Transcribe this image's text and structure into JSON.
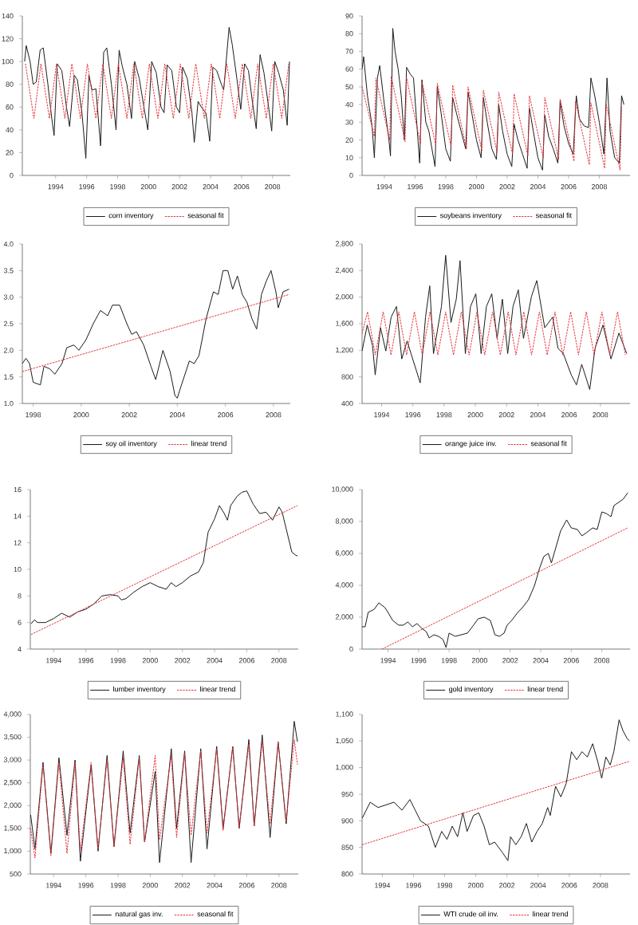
{
  "chart_data": [
    {
      "type": "line",
      "xlim": [
        1991.85,
        2009.15
      ],
      "xticks": [
        1994,
        1996,
        1998,
        2000,
        2002,
        2004,
        2006,
        2008
      ],
      "ylim": [
        0,
        140
      ],
      "yticks": [
        0,
        20,
        40,
        60,
        80,
        100,
        120,
        140
      ],
      "legend": "bottom",
      "series": [
        {
          "name": "corn inventory",
          "color": "#1a1a1a",
          "line_style": "solid",
          "x": [
            1992.0,
            1992.1,
            1992.35,
            1992.55,
            1992.75,
            1993.0,
            1993.2,
            1993.5,
            1993.75,
            1993.9,
            1994.1,
            1994.4,
            1994.7,
            1994.9,
            1995.2,
            1995.4,
            1995.7,
            1995.95,
            1996.15,
            1996.35,
            1996.6,
            1996.9,
            1997.1,
            1997.3,
            1997.6,
            1997.9,
            1998.1,
            1998.3,
            1998.6,
            1998.9,
            1999.1,
            1999.4,
            1999.7,
            1999.95,
            2000.2,
            2000.5,
            2000.8,
            2001.0,
            2001.2,
            2001.5,
            2001.8,
            2002.0,
            2002.2,
            2002.5,
            2002.8,
            2002.95,
            2003.2,
            2003.4,
            2003.7,
            2003.95,
            2004.15,
            2004.4,
            2004.7,
            2004.85,
            2005.2,
            2005.4,
            2005.7,
            2005.95,
            2006.2,
            2006.45,
            2006.7,
            2006.95,
            2007.2,
            2007.45,
            2007.7,
            2007.95,
            2008.15,
            2008.4,
            2008.7,
            2008.95,
            2009.1
          ],
          "values": [
            100,
            114,
            100,
            80,
            82,
            110,
            112,
            80,
            50,
            35,
            98,
            92,
            60,
            43,
            88,
            84,
            55,
            15,
            88,
            75,
            76,
            26,
            108,
            112,
            80,
            40,
            110,
            96,
            80,
            50,
            100,
            85,
            60,
            40,
            100,
            90,
            60,
            55,
            97,
            92,
            60,
            55,
            95,
            85,
            55,
            29,
            65,
            60,
            55,
            30,
            95,
            92,
            80,
            75,
            130,
            115,
            85,
            58,
            98,
            92,
            65,
            41,
            106,
            90,
            65,
            39,
            100,
            90,
            75,
            44,
            100
          ]
        },
        {
          "name": "seasonal fit",
          "color": "#e8303a",
          "line_style": "dashed",
          "x": [
            1992.05,
            1992.6,
            1993.05,
            1993.6,
            1994.05,
            1994.6,
            1995.05,
            1995.6,
            1996.05,
            1996.6,
            1997.05,
            1997.6,
            1998.05,
            1998.6,
            1999.05,
            1999.6,
            2000.05,
            2000.6,
            2001.05,
            2001.6,
            2002.05,
            2002.6,
            2003.05,
            2003.6,
            2004.05,
            2004.6,
            2005.05,
            2005.6,
            2006.05,
            2006.6,
            2007.05,
            2007.6,
            2008.05,
            2008.6,
            2009.05
          ],
          "values": [
            98,
            50,
            98,
            50,
            98,
            50,
            98,
            50,
            98,
            50,
            98,
            50,
            98,
            50,
            98,
            50,
            98,
            50,
            98,
            50,
            98,
            50,
            98,
            50,
            98,
            50,
            98,
            50,
            98,
            50,
            98,
            50,
            98,
            50,
            98
          ]
        }
      ]
    },
    {
      "type": "line",
      "xlim": [
        1992.55,
        2010.0
      ],
      "xticks": [
        1994,
        1996,
        1998,
        2000,
        2002,
        2004,
        2006,
        2008
      ],
      "ylim": [
        0,
        90
      ],
      "yticks": [
        0,
        10,
        20,
        30,
        40,
        50,
        60,
        70,
        80,
        90
      ],
      "legend": "bottom",
      "series": [
        {
          "name": "soybeans inventory",
          "color": "#1a1a1a",
          "line_style": "solid",
          "x": [
            1992.55,
            1992.65,
            1992.9,
            1993.2,
            1993.35,
            1993.55,
            1993.7,
            1994.0,
            1994.3,
            1994.4,
            1994.55,
            1994.7,
            1994.9,
            1995.1,
            1995.3,
            1995.45,
            1995.7,
            1995.9,
            1996.3,
            1996.45,
            1996.7,
            1996.9,
            1997.3,
            1997.45,
            1997.7,
            1998.0,
            1998.3,
            1998.45,
            1998.7,
            1999.0,
            1999.3,
            1999.45,
            1999.7,
            2000.0,
            2000.3,
            2000.45,
            2000.7,
            2001.0,
            2001.3,
            2001.45,
            2001.7,
            2002.0,
            2002.3,
            2002.45,
            2002.7,
            2003.0,
            2003.3,
            2003.45,
            2003.7,
            2004.0,
            2004.3,
            2004.45,
            2004.7,
            2005.0,
            2005.3,
            2005.45,
            2005.7,
            2006.0,
            2006.3,
            2006.5,
            2006.7,
            2007.0,
            2007.3,
            2007.45,
            2007.7,
            2008.0,
            2008.3,
            2008.5,
            2008.7,
            2009.0,
            2009.3,
            2009.45,
            2009.6
          ],
          "values": [
            60,
            67,
            45,
            28,
            10,
            55,
            62,
            40,
            20,
            11,
            83,
            70,
            60,
            45,
            20,
            61,
            57,
            55,
            7,
            54,
            30,
            25,
            5,
            50,
            35,
            15,
            8,
            44,
            35,
            25,
            15,
            47,
            35,
            20,
            10,
            44,
            30,
            15,
            9,
            40,
            25,
            12,
            5,
            29,
            20,
            12,
            4,
            38,
            25,
            10,
            3,
            34,
            22,
            15,
            7,
            42,
            28,
            18,
            12,
            45,
            32,
            28,
            27,
            55,
            45,
            30,
            12,
            55,
            25,
            10,
            7,
            45,
            40
          ]
        },
        {
          "name": "seasonal fit",
          "color": "#e8303a",
          "line_style": "dashed",
          "x": [
            1992.55,
            1993.35,
            1993.45,
            1994.35,
            1994.45,
            1995.35,
            1995.45,
            1996.35,
            1996.45,
            1997.35,
            1997.45,
            1998.35,
            1998.45,
            1999.35,
            1999.45,
            2000.35,
            2000.45,
            2001.35,
            2001.45,
            2002.35,
            2002.45,
            2003.35,
            2003.45,
            2004.35,
            2004.45,
            2005.35,
            2005.45,
            2006.35,
            2006.45,
            2007.35,
            2007.45,
            2008.35,
            2008.45,
            2009.35,
            2009.45
          ],
          "values": [
            50,
            22,
            55,
            20,
            56,
            19,
            55,
            18,
            53,
            17,
            52,
            16,
            51,
            15,
            50,
            14,
            48,
            13,
            47,
            12,
            46,
            11,
            45,
            10,
            44,
            9,
            43,
            8,
            42,
            6,
            41,
            4,
            40,
            3,
            39
          ]
        }
      ]
    },
    {
      "type": "line",
      "xlim": [
        1997.55,
        2008.7
      ],
      "xticks": [
        1998,
        2000,
        2002,
        2004,
        2006,
        2008
      ],
      "ylim": [
        1.0,
        4.0
      ],
      "yticks": [
        {
          "value": 1.0,
          "label": "1.0"
        },
        {
          "value": 1.5,
          "label": "1.5"
        },
        {
          "value": 2.0,
          "label": "2.0"
        },
        {
          "value": 2.5,
          "label": "2.5"
        },
        {
          "value": 3.0,
          "label": "3.0"
        },
        {
          "value": 3.5,
          "label": "3.5"
        },
        {
          "value": 4.0,
          "label": "4.0"
        }
      ],
      "legend": "bottom",
      "series": [
        {
          "name": "soy oil inventory",
          "color": "#1a1a1a",
          "line_style": "solid",
          "x": [
            1997.55,
            1997.7,
            1997.85,
            1998.0,
            1998.3,
            1998.45,
            1998.7,
            1998.9,
            1999.2,
            1999.4,
            1999.7,
            1999.9,
            2000.2,
            2000.5,
            2000.8,
            2001.1,
            2001.3,
            2001.6,
            2001.9,
            2002.1,
            2002.3,
            2002.6,
            2002.9,
            2003.1,
            2003.4,
            2003.7,
            2003.9,
            2004.0,
            2004.1,
            2004.5,
            2004.7,
            2004.9,
            2005.2,
            2005.5,
            2005.7,
            2005.9,
            2006.1,
            2006.3,
            2006.5,
            2006.7,
            2006.9,
            2007.1,
            2007.3,
            2007.5,
            2007.7,
            2007.9,
            2008.1,
            2008.2,
            2008.4,
            2008.65
          ],
          "values": [
            1.75,
            1.85,
            1.75,
            1.4,
            1.35,
            1.7,
            1.65,
            1.55,
            1.75,
            2.05,
            2.1,
            2.0,
            2.2,
            2.5,
            2.75,
            2.65,
            2.85,
            2.85,
            2.5,
            2.3,
            2.35,
            2.1,
            1.7,
            1.45,
            2.0,
            1.6,
            1.15,
            1.1,
            1.25,
            1.8,
            1.75,
            1.9,
            2.6,
            3.1,
            3.05,
            3.5,
            3.5,
            3.15,
            3.4,
            3.05,
            2.9,
            2.6,
            2.4,
            3.05,
            3.3,
            3.5,
            3.1,
            2.8,
            3.1,
            3.15
          ]
        },
        {
          "name": "linear trend",
          "type": "line",
          "color": "#e8303a",
          "line_style": "dashed",
          "x": [
            1997.55,
            2008.65
          ],
          "values": [
            1.6,
            3.05
          ]
        }
      ]
    },
    {
      "type": "line",
      "xlim": [
        1992.75,
        2009.9
      ],
      "xticks": [
        1994,
        1996,
        1998,
        2000,
        2002,
        2004,
        2006,
        2008
      ],
      "ylim": [
        400,
        2800
      ],
      "yticks": [
        400,
        800,
        {
          "value": 1200,
          "label": "1,200"
        },
        {
          "value": 1600,
          "label": "1,600"
        },
        {
          "value": 2000,
          "label": "2,000"
        },
        {
          "value": 2400,
          "label": "2,400"
        },
        {
          "value": 2800,
          "label": "2,800"
        }
      ],
      "legend": "bottom",
      "series": [
        {
          "name": "orange juice inv.",
          "color": "#1a1a1a",
          "line_style": "solid",
          "x": [
            1992.75,
            1993.08,
            1993.42,
            1993.59,
            1993.93,
            1994.27,
            1994.61,
            1994.95,
            1995.29,
            1995.63,
            1996.47,
            1996.81,
            1997.08,
            1997.32,
            1997.83,
            1998.1,
            1998.44,
            1998.78,
            1999.02,
            1999.36,
            1999.69,
            2000.03,
            2000.37,
            2000.71,
            2001.05,
            2001.39,
            2001.73,
            2002.07,
            2002.41,
            2002.75,
            2003.08,
            2003.59,
            2003.93,
            2004.44,
            2004.95,
            2005.29,
            2005.63,
            2006.14,
            2006.47,
            2006.81,
            2007.32,
            2007.66,
            2008.17,
            2008.68,
            2009.19,
            2009.69
          ],
          "values": [
            1190,
            1580,
            1270,
            830,
            1540,
            1190,
            1700,
            1860,
            1070,
            1340,
            710,
            1700,
            2170,
            1150,
            1860,
            2630,
            1620,
            1970,
            2550,
            1150,
            1860,
            2050,
            1150,
            1860,
            2050,
            1380,
            1970,
            1150,
            1860,
            2110,
            1380,
            2010,
            2250,
            1540,
            1700,
            1230,
            1150,
            830,
            680,
            990,
            610,
            1230,
            1580,
            1070,
            1460,
            1150
          ]
        },
        {
          "name": "seasonal fit",
          "color": "#e8303a",
          "line_style": "dashed",
          "x": [
            1992.75,
            1993.1,
            1993.6,
            1994.1,
            1994.6,
            1995.1,
            1995.6,
            1996.1,
            1996.6,
            1997.1,
            1997.6,
            1998.1,
            1998.6,
            1999.1,
            1999.6,
            2000.1,
            2000.6,
            2001.1,
            2001.6,
            2002.1,
            2002.6,
            2003.1,
            2003.6,
            2004.1,
            2004.6,
            2005.1,
            2005.6,
            2006.1,
            2006.6,
            2007.1,
            2007.6,
            2008.1,
            2008.6,
            2009.1,
            2009.6
          ],
          "values": [
            1450,
            1780,
            1130,
            1780,
            1130,
            1780,
            1130,
            1780,
            1130,
            1780,
            1130,
            1780,
            1130,
            1780,
            1130,
            1780,
            1130,
            1780,
            1130,
            1780,
            1130,
            1780,
            1130,
            1780,
            1130,
            1780,
            1130,
            1780,
            1130,
            1780,
            1130,
            1780,
            1130,
            1780,
            1130
          ]
        }
      ]
    },
    {
      "type": "line",
      "xlim": [
        1992.55,
        2009.2
      ],
      "xticks": [
        1994,
        1996,
        1998,
        2000,
        2002,
        2004,
        2006,
        2008
      ],
      "ylim": [
        4,
        16
      ],
      "yticks": [
        4,
        6,
        8,
        10,
        12,
        14,
        16
      ],
      "legend": "bottom",
      "series": [
        {
          "name": "lumber inventory",
          "color": "#1a1a1a",
          "line_style": "solid",
          "x": [
            1992.6,
            1992.8,
            1993.0,
            1993.5,
            1994.0,
            1994.5,
            1995.0,
            1995.5,
            1996.0,
            1996.5,
            1997.0,
            1997.5,
            1998.0,
            1998.2,
            1998.5,
            1999.0,
            1999.5,
            2000.0,
            2000.5,
            2001.0,
            2001.3,
            2001.6,
            2002.0,
            2002.5,
            2003.0,
            2003.3,
            2003.6,
            2004.0,
            2004.3,
            2004.6,
            2004.8,
            2005.0,
            2005.4,
            2005.7,
            2006.0,
            2006.4,
            2006.8,
            2007.2,
            2007.6,
            2008.0,
            2008.2,
            2008.5,
            2008.8,
            2009.0,
            2009.15
          ],
          "values": [
            5.9,
            6.2,
            6.0,
            6.0,
            6.3,
            6.7,
            6.4,
            6.8,
            7.0,
            7.4,
            8.0,
            8.1,
            8.0,
            7.7,
            7.8,
            8.3,
            8.7,
            9.0,
            8.7,
            8.5,
            9.0,
            8.7,
            9.0,
            9.5,
            9.8,
            10.5,
            12.8,
            13.8,
            14.8,
            14.2,
            13.7,
            14.8,
            15.5,
            15.8,
            15.9,
            14.9,
            14.2,
            14.3,
            13.7,
            14.7,
            14.3,
            12.8,
            11.3,
            11.1,
            11.0
          ]
        },
        {
          "name": "linear trend",
          "type": "line",
          "color": "#e8303a",
          "line_style": "dashed",
          "x": [
            1992.6,
            2009.15
          ],
          "values": [
            5.1,
            14.8
          ]
        }
      ]
    },
    {
      "type": "line",
      "xlim": [
        1992.3,
        2009.85
      ],
      "xticks": [
        1994,
        1996,
        1998,
        2000,
        2002,
        2004,
        2006,
        2008
      ],
      "ylim": [
        0,
        10000
      ],
      "yticks": [
        0,
        {
          "value": 2000,
          "label": "2,000"
        },
        {
          "value": 4000,
          "label": "4,000"
        },
        {
          "value": 6000,
          "label": "6,000"
        },
        {
          "value": 8000,
          "label": "8,000"
        },
        {
          "value": 10000,
          "label": "10,000"
        }
      ],
      "legend": "bottom",
      "series": [
        {
          "name": "gold inventory",
          "color": "#1a1a1a",
          "line_style": "solid",
          "x": [
            1992.3,
            1992.5,
            1992.7,
            1993.1,
            1993.4,
            1993.8,
            1994.0,
            1994.3,
            1994.7,
            1995.0,
            1995.3,
            1995.6,
            1995.9,
            1996.2,
            1996.5,
            1996.7,
            1997.0,
            1997.3,
            1997.6,
            1997.8,
            1998.0,
            1998.4,
            1998.8,
            1999.2,
            1999.6,
            1999.9,
            2000.3,
            2000.7,
            2001.0,
            2001.3,
            2001.6,
            2001.8,
            2002.1,
            2002.5,
            2002.8,
            2003.2,
            2003.6,
            2003.9,
            2004.2,
            2004.5,
            2004.7,
            2005.0,
            2005.3,
            2005.7,
            2006.0,
            2006.4,
            2006.7,
            2007.0,
            2007.4,
            2007.7,
            2008.0,
            2008.3,
            2008.6,
            2008.8,
            2009.1,
            2009.4,
            2009.7
          ],
          "values": [
            1400,
            1400,
            2300,
            2500,
            2900,
            2600,
            2300,
            1800,
            1500,
            1500,
            1700,
            1400,
            1600,
            1300,
            1100,
            700,
            900,
            800,
            600,
            100,
            1000,
            800,
            900,
            1000,
            1500,
            1900,
            2000,
            1800,
            900,
            800,
            1000,
            1500,
            1800,
            2300,
            2600,
            3100,
            4000,
            5000,
            5800,
            6000,
            5400,
            6400,
            7400,
            8100,
            7600,
            7500,
            7100,
            7300,
            7600,
            7500,
            8600,
            8500,
            8300,
            9000,
            9200,
            9400,
            9800
          ]
        },
        {
          "name": "linear trend",
          "type": "line",
          "color": "#e8303a",
          "line_style": "dashed",
          "x": [
            1993.6,
            2009.7
          ],
          "values": [
            0,
            7600
          ]
        }
      ]
    },
    {
      "type": "line",
      "xlim": [
        1992.55,
        2009.2
      ],
      "xticks": [
        1994,
        1996,
        1998,
        2000,
        2002,
        2004,
        2006,
        2008
      ],
      "ylim": [
        500,
        4000
      ],
      "yticks": [
        500,
        {
          "value": 1000,
          "label": "1,000"
        },
        {
          "value": 1500,
          "label": "1,500"
        },
        {
          "value": 2000,
          "label": "2,000"
        },
        {
          "value": 2500,
          "label": "2,500"
        },
        {
          "value": 3000,
          "label": "3,000"
        },
        {
          "value": 3500,
          "label": "3,500"
        },
        {
          "value": 4000,
          "label": "4,000"
        }
      ],
      "legend": "bottom",
      "series": [
        {
          "name": "natural gas inv.",
          "color": "#1a1a1a",
          "line_style": "solid",
          "x": [
            1992.57,
            1992.84,
            1993.34,
            1993.83,
            1994.33,
            1994.83,
            1995.33,
            1995.66,
            1996.33,
            1996.76,
            1997.32,
            1997.75,
            1998.32,
            1998.75,
            1999.32,
            1999.65,
            2000.31,
            2000.58,
            2001.31,
            2001.64,
            2002.14,
            2002.54,
            2003.14,
            2003.53,
            2004.13,
            2004.53,
            2005.13,
            2005.53,
            2006.13,
            2006.46,
            2006.96,
            2007.45,
            2007.95,
            2008.45,
            2008.95,
            2009.15
          ],
          "values": [
            1800,
            1050,
            2950,
            950,
            3050,
            1350,
            3000,
            780,
            2900,
            1000,
            3100,
            1100,
            3200,
            1400,
            3100,
            1200,
            2750,
            750,
            3250,
            1500,
            3200,
            750,
            3250,
            1050,
            3300,
            1500,
            3300,
            1500,
            3450,
            1550,
            3550,
            1300,
            3400,
            1600,
            3850,
            3400
          ]
        },
        {
          "name": "seasonal fit",
          "color": "#e8303a",
          "line_style": "dashed",
          "x": [
            1992.57,
            1992.84,
            1993.34,
            1993.83,
            1994.33,
            1994.83,
            1995.33,
            1995.66,
            1996.33,
            1996.76,
            1997.32,
            1997.75,
            1998.32,
            1998.75,
            1999.32,
            1999.65,
            2000.31,
            2000.58,
            2001.31,
            2001.64,
            2002.14,
            2002.54,
            2003.14,
            2003.53,
            2004.13,
            2004.53,
            2005.13,
            2005.53,
            2006.13,
            2006.46,
            2006.96,
            2007.45,
            2007.95,
            2008.45,
            2008.95,
            2009.15
          ],
          "values": [
            1500,
            850,
            2900,
            900,
            2950,
            950,
            2950,
            1000,
            2950,
            1050,
            3000,
            1100,
            3050,
            1150,
            3050,
            1200,
            3100,
            1250,
            3100,
            1300,
            3150,
            1350,
            3200,
            1400,
            3250,
            1450,
            3300,
            1500,
            3350,
            1550,
            3400,
            1600,
            3400,
            1650,
            3450,
            2900
          ]
        }
      ]
    },
    {
      "type": "line",
      "xlim": [
        1992.7,
        2009.9
      ],
      "xticks": [
        1994,
        1996,
        1998,
        2000,
        2002,
        2004,
        2006,
        2008
      ],
      "ylim": [
        800,
        1100
      ],
      "yticks": [
        800,
        850,
        900,
        950,
        {
          "value": 1000,
          "label": "1,000"
        },
        {
          "value": 1050,
          "label": "1,050"
        },
        {
          "value": 1100,
          "label": "1,100"
        }
      ],
      "legend": "bottom",
      "series": [
        {
          "name": "WTI crude oil inv.",
          "color": "#1a1a1a",
          "line_style": "solid",
          "x": [
            1992.71,
            1993.22,
            1993.73,
            1994.75,
            1995.26,
            1995.77,
            1996.45,
            1996.96,
            1997.4,
            1997.81,
            1998.15,
            1998.49,
            1998.83,
            1999.17,
            1999.44,
            1999.85,
            2000.19,
            2000.53,
            2000.87,
            2001.21,
            2001.72,
            2002.06,
            2002.23,
            2002.57,
            2002.91,
            2003.25,
            2003.59,
            2003.93,
            2004.27,
            2004.61,
            2004.78,
            2005.12,
            2005.46,
            2005.8,
            2006.14,
            2006.48,
            2006.82,
            2007.16,
            2007.5,
            2007.84,
            2008.08,
            2008.35,
            2008.63,
            2008.86,
            2009.2,
            2009.44,
            2009.71,
            2009.88
          ],
          "values": [
            905,
            935,
            925,
            935,
            920,
            940,
            900,
            890,
            850,
            880,
            865,
            890,
            870,
            915,
            880,
            910,
            915,
            890,
            855,
            860,
            840,
            825,
            870,
            855,
            870,
            895,
            860,
            880,
            895,
            925,
            910,
            965,
            945,
            970,
            1030,
            1015,
            1030,
            1020,
            1045,
            1010,
            980,
            1020,
            1005,
            1030,
            1090,
            1070,
            1055,
            1050
          ]
        },
        {
          "name": "linear trend",
          "type": "line",
          "color": "#e8303a",
          "line_style": "dashed",
          "x": [
            1992.71,
            2009.88
          ],
          "values": [
            855,
            1012
          ]
        }
      ]
    }
  ]
}
